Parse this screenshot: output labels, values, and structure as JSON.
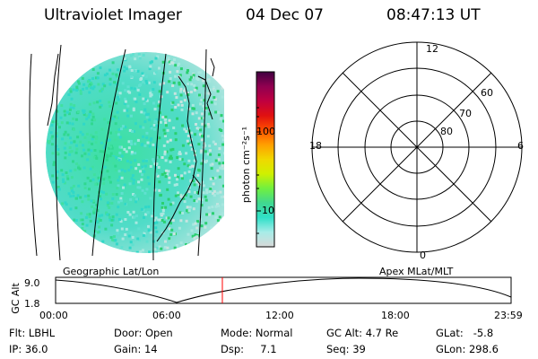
{
  "header": {
    "instrument": "Ultraviolet Imager",
    "date": "04 Dec 07",
    "time": "08:47:13 UT"
  },
  "colors": {
    "background": "#ffffff",
    "foreground": "#000000",
    "marker": "#ff0000",
    "colorbar_stops": [
      "#d8d8d8",
      "#a8ece8",
      "#30e0c8",
      "#40d890",
      "#70f040",
      "#d0f000",
      "#f0d800",
      "#ffa000",
      "#ff5000",
      "#e01010",
      "#c00040",
      "#900050",
      "#400040"
    ]
  },
  "colorbar": {
    "unit_label": "photon cm⁻²s⁻¹",
    "ticks": [
      "100",
      "10"
    ],
    "scale": "log"
  },
  "polar_plot": {
    "mlt_labels": [
      "12",
      "18",
      "6",
      "0"
    ],
    "mlat_labels": [
      "60",
      "70",
      "80"
    ]
  },
  "timeline": {
    "left_caption": "Geographic Lat/Lon",
    "right_caption": "Apex MLat/MLT",
    "ylabel": "GC Alt",
    "ymax_label": "9.0",
    "ymin_label": "1.8",
    "time_labels": [
      "00:00",
      "06:00",
      "12:00",
      "18:00",
      "23:59"
    ],
    "current_time_fraction": 0.3661
  },
  "footer": {
    "flt": "Flt: LBHL",
    "ip": "IP: 36.0",
    "door": "Door: Open",
    "gain": "Gain: 14",
    "mode": "Mode: Normal",
    "dsp": "Dsp:     7.1",
    "gc_alt": "GC Alt: 4.7 Re",
    "seq": "Seq: 39",
    "glat": "GLat:   -5.8",
    "glon": "GLon: 298.6"
  }
}
